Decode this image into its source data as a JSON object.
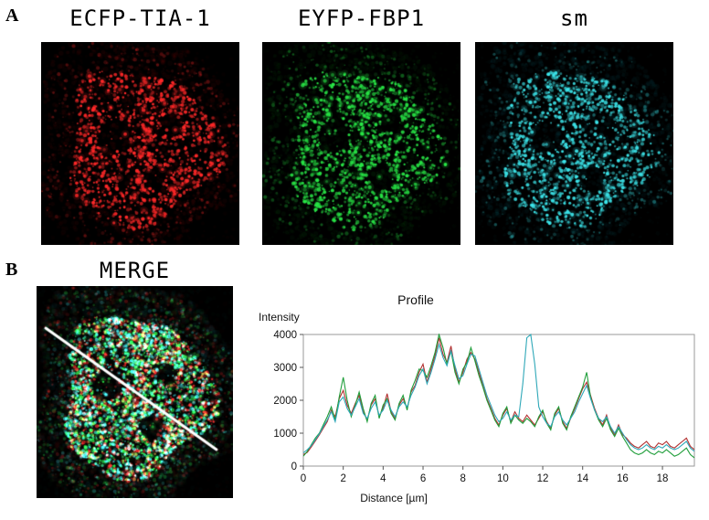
{
  "figure": {
    "panel_a_label": "A",
    "panel_b_label": "B",
    "merge_title": "MERGE",
    "panels": [
      {
        "title": "ECFP-TIA-1",
        "channel": "red",
        "color": "#ff2a2a"
      },
      {
        "title": "EYFP-FBP1",
        "channel": "green",
        "color": "#2aff4a"
      },
      {
        "title": "sm",
        "channel": "cyan",
        "color": "#35e0e8"
      }
    ]
  },
  "chart_data": {
    "type": "line",
    "title": "Profile",
    "ylabel": "Intensity",
    "xlabel": "Distance [µm]",
    "xlim": [
      0,
      19.6
    ],
    "ylim": [
      0,
      4000
    ],
    "x_ticks": [
      0,
      2,
      4,
      6,
      8,
      10,
      12,
      14,
      16,
      18
    ],
    "y_ticks": [
      0,
      1000,
      2000,
      3000,
      4000
    ],
    "x_start": 0,
    "x_step": 0.2,
    "grid": false,
    "legend": "none",
    "series": [
      {
        "name": "ECFP-TIA-1",
        "color": "#b23030",
        "values": [
          350,
          420,
          580,
          760,
          950,
          1150,
          1350,
          1700,
          1500,
          2050,
          2300,
          1850,
          1600,
          1900,
          2150,
          1650,
          1400,
          1850,
          2050,
          1500,
          1750,
          2200,
          1650,
          1450,
          1850,
          2050,
          1750,
          2250,
          2450,
          2850,
          3100,
          2550,
          2950,
          3350,
          3900,
          3400,
          3150,
          3650,
          2950,
          2550,
          2850,
          3250,
          3450,
          3250,
          2850,
          2450,
          2050,
          1750,
          1450,
          1250,
          1550,
          1750,
          1350,
          1650,
          1450,
          1350,
          1550,
          1400,
          1250,
          1450,
          1650,
          1350,
          1150,
          1550,
          1750,
          1350,
          1150,
          1450,
          1750,
          2050,
          2350,
          2550,
          2150,
          1750,
          1450,
          1250,
          1550,
          1150,
          950,
          1250,
          950,
          850,
          700,
          600,
          550,
          650,
          750,
          600,
          550,
          700,
          650,
          750,
          600,
          550,
          650,
          750,
          850,
          600,
          500
        ]
      },
      {
        "name": "EYFP-FBP1",
        "color": "#1f9e3a",
        "values": [
          300,
          450,
          650,
          850,
          1000,
          1250,
          1500,
          1800,
          1400,
          2100,
          2700,
          2000,
          1500,
          1850,
          2250,
          1750,
          1350,
          1900,
          2150,
          1450,
          1850,
          2050,
          1600,
          1400,
          1900,
          2150,
          1700,
          2300,
          2600,
          2950,
          2900,
          2700,
          3050,
          3450,
          4000,
          3600,
          3100,
          3500,
          2850,
          2500,
          2950,
          3150,
          3600,
          3200,
          2750,
          2400,
          2000,
          1700,
          1400,
          1200,
          1600,
          1800,
          1300,
          1550,
          1400,
          1300,
          1450,
          1350,
          1200,
          1500,
          1700,
          1300,
          1100,
          1600,
          1800,
          1300,
          1100,
          1500,
          1800,
          2100,
          2400,
          2850,
          2100,
          1700,
          1400,
          1200,
          1450,
          1100,
          900,
          1150,
          900,
          700,
          500,
          400,
          350,
          400,
          500,
          400,
          350,
          450,
          400,
          500,
          400,
          300,
          350,
          450,
          550,
          350,
          250
        ]
      },
      {
        "name": "sm",
        "color": "#2fa8b8",
        "values": [
          400,
          500,
          620,
          800,
          980,
          1200,
          1400,
          1650,
          1350,
          1950,
          2100,
          1750,
          1550,
          1800,
          2050,
          1600,
          1450,
          1750,
          1950,
          1550,
          1700,
          2000,
          1700,
          1500,
          1800,
          1950,
          1800,
          2150,
          2400,
          2750,
          2950,
          2500,
          2850,
          3250,
          3700,
          3300,
          3050,
          3500,
          3050,
          2650,
          2750,
          3100,
          3400,
          3350,
          2950,
          2550,
          2150,
          1850,
          1550,
          1350,
          1450,
          1650,
          1400,
          1550,
          1500,
          2500,
          3900,
          4000,
          3100,
          1800,
          1500,
          1300,
          1200,
          1500,
          1650,
          1400,
          1250,
          1450,
          1650,
          1950,
          2200,
          2450,
          2050,
          1700,
          1450,
          1350,
          1500,
          1200,
          1000,
          1200,
          1000,
          800,
          650,
          550,
          500,
          550,
          650,
          550,
          500,
          600,
          550,
          650,
          550,
          500,
          550,
          650,
          750,
          550,
          450
        ]
      }
    ]
  }
}
